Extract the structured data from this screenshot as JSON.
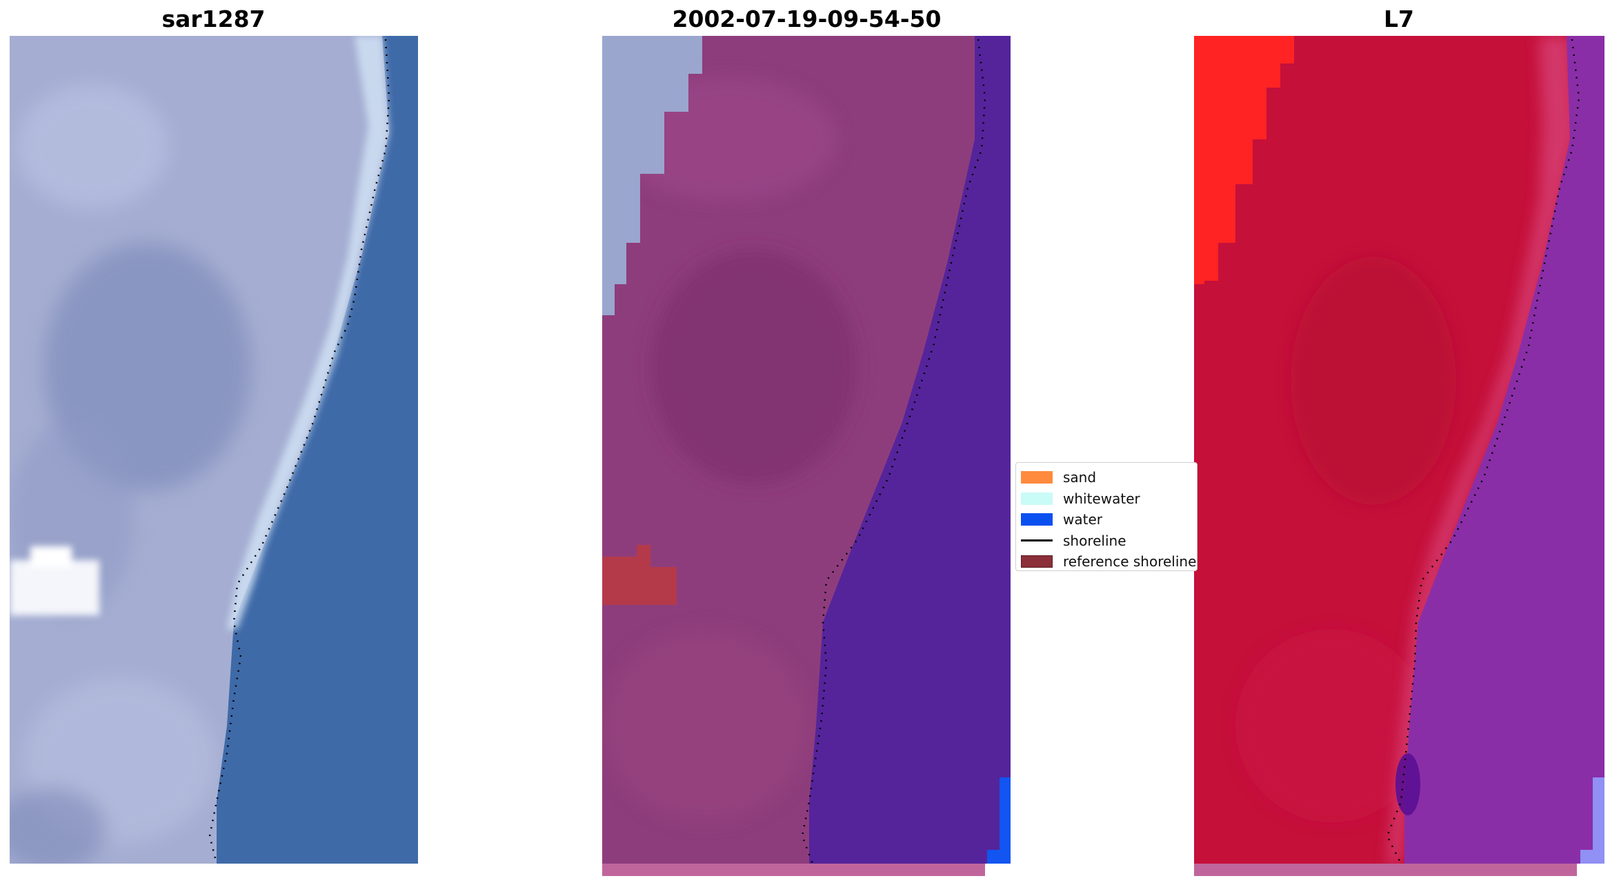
{
  "panels": [
    {
      "id": "left",
      "title": "sar1287"
    },
    {
      "id": "middle",
      "title": "2002-07-19-09-54-50"
    },
    {
      "id": "right",
      "title": "L7"
    }
  ],
  "legend": {
    "items": [
      {
        "label": "sand",
        "kind": "patch",
        "color": "#ff8a3d"
      },
      {
        "label": "whitewater",
        "kind": "patch",
        "color": "#c9fbf7"
      },
      {
        "label": "water",
        "kind": "patch",
        "color": "#0a50f0"
      },
      {
        "label": "shoreline",
        "kind": "line",
        "color": "#000000"
      },
      {
        "label": "reference shoreline",
        "kind": "patch",
        "color": "#8b2f3a"
      }
    ]
  },
  "colors": {
    "rgb_land": "#9fa8cc",
    "rgb_water": "#3f6aa8",
    "classified_land": "#8e3d7c",
    "classified_water": "#55249b",
    "classified_whitewater_area": "#9aa6ce",
    "classified_reference_patch": "#b43a4a",
    "classified_water_edge": "#1255f0",
    "index_land": "#c5103a",
    "index_bright": "#ff2323",
    "index_water": "#8a2ea7",
    "index_edge": "#9090f5"
  }
}
